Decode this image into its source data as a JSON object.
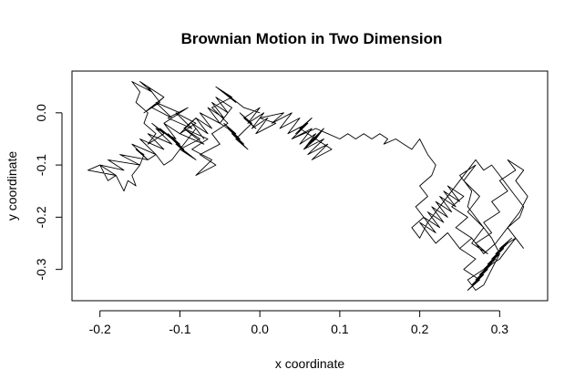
{
  "chart_data": {
    "type": "line",
    "title": "Brownian Motion in Two Dimension",
    "xlabel": "x coordinate",
    "ylabel": "y coordinate",
    "xlim": [
      -0.235,
      0.36
    ],
    "ylim": [
      -0.36,
      0.08
    ],
    "x_ticks": [
      {
        "value": -0.2,
        "label": "-0.2"
      },
      {
        "value": -0.1,
        "label": "-0.1"
      },
      {
        "value": 0.0,
        "label": "0.0"
      },
      {
        "value": 0.1,
        "label": "0.1"
      },
      {
        "value": 0.2,
        "label": "0.2"
      },
      {
        "value": 0.3,
        "label": "0.3"
      }
    ],
    "y_ticks": [
      {
        "value": 0.0,
        "label": "0.0"
      },
      {
        "value": -0.1,
        "label": "-0.1"
      },
      {
        "value": -0.2,
        "label": "-0.2"
      },
      {
        "value": -0.3,
        "label": "-0.3"
      }
    ],
    "grid": false,
    "series": [
      {
        "x": [
          0.0,
          -0.02,
          -0.045,
          -0.03,
          -0.055,
          -0.035,
          -0.06,
          -0.04,
          -0.06,
          -0.05,
          -0.075,
          -0.055,
          -0.08,
          -0.06,
          -0.085,
          -0.065,
          -0.095,
          -0.07,
          -0.1,
          -0.08,
          -0.105,
          -0.085,
          -0.115,
          -0.09,
          -0.12,
          -0.1,
          -0.13,
          -0.11,
          -0.135,
          -0.12,
          -0.145,
          -0.125,
          -0.14,
          -0.12,
          -0.15,
          -0.135,
          -0.16,
          -0.15,
          -0.155,
          -0.14,
          -0.145,
          -0.13,
          -0.14,
          -0.12,
          -0.135,
          -0.11,
          -0.125,
          -0.1,
          -0.115,
          -0.095,
          -0.11,
          -0.09,
          -0.105,
          -0.08,
          -0.1,
          -0.075,
          -0.095,
          -0.08,
          -0.1,
          -0.12,
          -0.105,
          -0.13,
          -0.11,
          -0.14,
          -0.12,
          -0.15,
          -0.13,
          -0.16,
          -0.14,
          -0.175,
          -0.15,
          -0.19,
          -0.17,
          -0.2,
          -0.18,
          -0.215,
          -0.2,
          -0.19,
          -0.18,
          -0.17,
          -0.165,
          -0.155,
          -0.16,
          -0.15,
          -0.145,
          -0.155,
          -0.14,
          -0.13,
          -0.12,
          -0.11,
          -0.1,
          -0.09,
          -0.08,
          -0.07,
          -0.085,
          -0.065,
          -0.08,
          -0.06,
          -0.075,
          -0.05,
          -0.065,
          -0.045,
          -0.06,
          -0.04,
          -0.055,
          -0.035,
          -0.05,
          -0.03,
          -0.045,
          -0.025,
          -0.04,
          -0.02,
          -0.035,
          -0.015,
          -0.03,
          -0.01,
          -0.025,
          -0.005,
          -0.02,
          0.0,
          -0.015,
          0.005,
          -0.01,
          0.01,
          -0.005,
          0.02,
          0.0,
          0.03,
          0.015,
          0.04,
          0.025,
          0.05,
          0.035,
          0.06,
          0.04,
          0.065,
          0.05,
          0.07,
          0.055,
          0.08,
          0.06,
          0.085,
          0.065,
          0.09,
          0.07,
          0.08,
          0.06,
          0.075,
          0.055,
          0.07,
          0.05,
          0.065,
          0.045,
          0.06,
          0.04,
          0.055,
          0.07,
          0.085,
          0.1,
          0.11,
          0.12,
          0.13,
          0.14,
          0.15,
          0.16,
          0.155,
          0.17,
          0.18,
          0.19,
          0.2,
          0.21,
          0.22,
          0.215,
          0.2,
          0.21,
          0.195,
          0.205,
          0.19,
          0.2,
          0.21,
          0.22,
          0.23,
          0.24,
          0.25,
          0.26,
          0.27,
          0.28,
          0.29,
          0.3,
          0.31,
          0.32,
          0.33,
          0.325,
          0.31,
          0.32,
          0.3,
          0.315,
          0.295,
          0.31,
          0.29,
          0.305,
          0.285,
          0.3,
          0.28,
          0.295,
          0.275,
          0.29,
          0.27,
          0.285,
          0.265,
          0.28,
          0.26,
          0.275,
          0.255,
          0.27,
          0.25,
          0.265,
          0.245,
          0.26,
          0.24,
          0.255,
          0.235,
          0.25,
          0.23,
          0.245,
          0.225,
          0.24,
          0.22,
          0.235,
          0.215,
          0.23,
          0.21,
          0.225,
          0.205,
          0.22,
          0.2,
          0.215,
          0.205,
          0.22,
          0.235,
          0.25,
          0.265,
          0.28,
          0.295,
          0.31,
          0.325,
          0.335,
          0.32,
          0.33,
          0.31,
          0.32,
          0.3,
          0.31,
          0.29,
          0.3,
          0.28,
          0.29,
          0.27,
          0.285,
          0.265,
          0.28,
          0.26,
          0.275,
          0.255,
          0.27,
          0.25,
          0.265,
          0.26,
          0.275,
          0.29,
          0.3,
          0.29,
          0.28,
          0.27,
          0.26,
          0.28,
          0.3,
          0.31,
          0.32,
          0.33
        ],
        "y": [
          0.0,
          0.01,
          0.04,
          0.02,
          0.05,
          0.03,
          0.01,
          -0.02,
          -0.04,
          -0.06,
          -0.08,
          -0.1,
          -0.12,
          -0.09,
          -0.07,
          -0.05,
          -0.03,
          -0.06,
          -0.04,
          -0.02,
          0.0,
          -0.03,
          -0.01,
          0.01,
          -0.02,
          0.0,
          0.02,
          -0.01,
          0.01,
          0.03,
          0.0,
          0.02,
          0.05,
          0.03,
          0.06,
          0.04,
          0.06,
          0.04,
          0.02,
          0.0,
          -0.02,
          -0.04,
          -0.06,
          -0.04,
          -0.02,
          -0.05,
          -0.03,
          -0.06,
          -0.04,
          -0.07,
          -0.05,
          -0.08,
          -0.06,
          -0.09,
          -0.07,
          -0.05,
          -0.03,
          -0.01,
          -0.04,
          -0.02,
          -0.05,
          -0.03,
          -0.06,
          -0.04,
          -0.07,
          -0.05,
          -0.08,
          -0.06,
          -0.09,
          -0.08,
          -0.1,
          -0.09,
          -0.11,
          -0.1,
          -0.12,
          -0.11,
          -0.1,
          -0.13,
          -0.12,
          -0.15,
          -0.13,
          -0.14,
          -0.12,
          -0.1,
          -0.08,
          -0.07,
          -0.09,
          -0.08,
          -0.1,
          -0.09,
          -0.07,
          -0.05,
          -0.03,
          -0.05,
          -0.02,
          -0.04,
          -0.01,
          -0.03,
          0.0,
          -0.02,
          0.01,
          -0.01,
          0.02,
          0.0,
          0.03,
          0.01,
          -0.02,
          -0.04,
          -0.02,
          -0.05,
          -0.03,
          -0.06,
          -0.04,
          -0.07,
          -0.05,
          -0.02,
          0.0,
          -0.03,
          -0.01,
          0.01,
          -0.02,
          0.0,
          -0.03,
          -0.01,
          -0.04,
          -0.02,
          -0.01,
          0.0,
          -0.02,
          0.0,
          -0.03,
          -0.01,
          -0.04,
          -0.02,
          -0.05,
          -0.03,
          -0.06,
          -0.04,
          -0.07,
          -0.05,
          -0.08,
          -0.06,
          -0.09,
          -0.07,
          -0.05,
          -0.03,
          -0.06,
          -0.04,
          -0.07,
          -0.05,
          -0.03,
          -0.01,
          -0.04,
          -0.02,
          -0.05,
          -0.04,
          -0.03,
          -0.04,
          -0.05,
          -0.04,
          -0.05,
          -0.04,
          -0.05,
          -0.04,
          -0.05,
          -0.06,
          -0.05,
          -0.06,
          -0.07,
          -0.05,
          -0.08,
          -0.1,
          -0.12,
          -0.14,
          -0.16,
          -0.18,
          -0.2,
          -0.22,
          -0.24,
          -0.21,
          -0.19,
          -0.17,
          -0.15,
          -0.13,
          -0.11,
          -0.09,
          -0.11,
          -0.1,
          -0.12,
          -0.14,
          -0.16,
          -0.18,
          -0.2,
          -0.22,
          -0.24,
          -0.26,
          -0.24,
          -0.27,
          -0.25,
          -0.28,
          -0.26,
          -0.29,
          -0.27,
          -0.3,
          -0.28,
          -0.31,
          -0.29,
          -0.32,
          -0.3,
          -0.33,
          -0.31,
          -0.34,
          -0.32,
          -0.3,
          -0.28,
          -0.26,
          -0.24,
          -0.22,
          -0.2,
          -0.18,
          -0.16,
          -0.14,
          -0.17,
          -0.15,
          -0.18,
          -0.16,
          -0.19,
          -0.17,
          -0.2,
          -0.18,
          -0.21,
          -0.19,
          -0.22,
          -0.2,
          -0.23,
          -0.21,
          -0.24,
          -0.22,
          -0.25,
          -0.23,
          -0.26,
          -0.24,
          -0.27,
          -0.25,
          -0.22,
          -0.19,
          -0.16,
          -0.13,
          -0.11,
          -0.09,
          -0.11,
          -0.13,
          -0.15,
          -0.17,
          -0.19,
          -0.21,
          -0.23,
          -0.25,
          -0.27,
          -0.25,
          -0.22,
          -0.19,
          -0.16,
          -0.13,
          -0.1,
          -0.12,
          -0.15,
          -0.18,
          -0.21,
          -0.24,
          -0.27,
          -0.3,
          -0.33,
          -0.34,
          -0.32,
          -0.3,
          -0.28,
          -0.26,
          -0.24,
          -0.26
        ]
      }
    ]
  }
}
